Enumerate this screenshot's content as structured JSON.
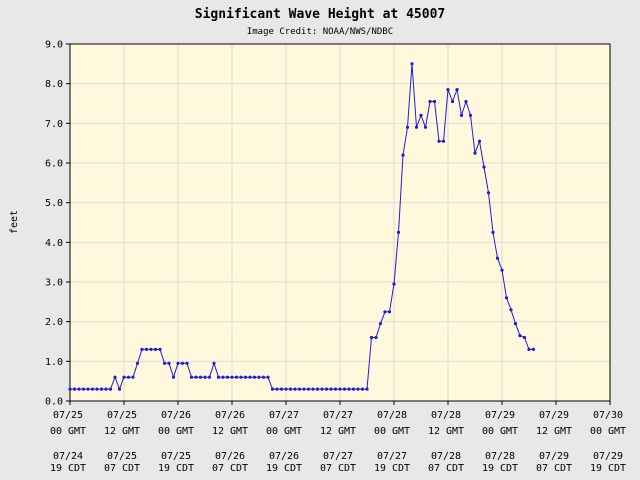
{
  "chart_data": {
    "type": "line",
    "title": "Significant Wave Height at 45007",
    "subtitle": "Image Credit: NOAA/NWS/NDBC",
    "ylabel": "feet",
    "xlabel": "",
    "ylim": [
      0,
      9
    ],
    "y_ticks": [
      "0.0",
      "1.0",
      "2.0",
      "3.0",
      "4.0",
      "5.0",
      "6.0",
      "7.0",
      "8.0",
      "9.0"
    ],
    "x_ticks": [
      {
        "gmt_date": "07/25",
        "gmt_time": "00 GMT",
        "local_date": "07/24",
        "local_time": "19 CDT"
      },
      {
        "gmt_date": "07/25",
        "gmt_time": "12 GMT",
        "local_date": "07/25",
        "local_time": "07 CDT"
      },
      {
        "gmt_date": "07/26",
        "gmt_time": "00 GMT",
        "local_date": "07/25",
        "local_time": "19 CDT"
      },
      {
        "gmt_date": "07/26",
        "gmt_time": "12 GMT",
        "local_date": "07/26",
        "local_time": "07 CDT"
      },
      {
        "gmt_date": "07/27",
        "gmt_time": "00 GMT",
        "local_date": "07/26",
        "local_time": "19 CDT"
      },
      {
        "gmt_date": "07/27",
        "gmt_time": "12 GMT",
        "local_date": "07/27",
        "local_time": "07 CDT"
      },
      {
        "gmt_date": "07/28",
        "gmt_time": "00 GMT",
        "local_date": "07/27",
        "local_time": "19 CDT"
      },
      {
        "gmt_date": "07/28",
        "gmt_time": "12 GMT",
        "local_date": "07/28",
        "local_time": "07 CDT"
      },
      {
        "gmt_date": "07/29",
        "gmt_time": "00 GMT",
        "local_date": "07/28",
        "local_time": "19 CDT"
      },
      {
        "gmt_date": "07/29",
        "gmt_time": "12 GMT",
        "local_date": "07/29",
        "local_time": "07 CDT"
      },
      {
        "gmt_date": "07/30",
        "gmt_time": "00 GMT",
        "local_date": "07/29",
        "local_time": "19 CDT"
      }
    ],
    "x_unit": "hours since 07/25 00 GMT",
    "xlim": [
      0,
      120
    ],
    "grid": true,
    "colors": {
      "line": "#1f1fd0",
      "plot_bg": "#fff8dc",
      "grid": "#e6d9d9",
      "page_bg": "#e8e8e8"
    },
    "series": [
      {
        "x": [
          0,
          1,
          2,
          3,
          4,
          5,
          6,
          7,
          8,
          9,
          10,
          11,
          12,
          13,
          14,
          15,
          16,
          17,
          18,
          19,
          20,
          21,
          22,
          23,
          24,
          25,
          26,
          27,
          28,
          29,
          30,
          31,
          32,
          33,
          34,
          35,
          36,
          37,
          38,
          39,
          40,
          41,
          42,
          43,
          44,
          45,
          46,
          47,
          48,
          49,
          50,
          51,
          52,
          53,
          54,
          55,
          56,
          57,
          58,
          59,
          60,
          61,
          62,
          63,
          64,
          65,
          66,
          67,
          68,
          69,
          70,
          71,
          72,
          73,
          74,
          75,
          76,
          77,
          78,
          79,
          80,
          81,
          82,
          83,
          84,
          85,
          86,
          87,
          88,
          89,
          90,
          91,
          92,
          93,
          94,
          95,
          96,
          97,
          98,
          99,
          100,
          101,
          102,
          103
        ],
        "values": [
          0.3,
          0.3,
          0.3,
          0.3,
          0.3,
          0.3,
          0.3,
          0.3,
          0.3,
          0.3,
          0.6,
          0.3,
          0.6,
          0.6,
          0.6,
          0.95,
          1.3,
          1.3,
          1.3,
          1.3,
          1.3,
          0.95,
          0.95,
          0.6,
          0.95,
          0.95,
          0.95,
          0.6,
          0.6,
          0.6,
          0.6,
          0.6,
          0.95,
          0.6,
          0.6,
          0.6,
          0.6,
          0.6,
          0.6,
          0.6,
          0.6,
          0.6,
          0.6,
          0.6,
          0.6,
          0.3,
          0.3,
          0.3,
          0.3,
          0.3,
          0.3,
          0.3,
          0.3,
          0.3,
          0.3,
          0.3,
          0.3,
          0.3,
          0.3,
          0.3,
          0.3,
          0.3,
          0.3,
          0.3,
          0.3,
          0.3,
          0.3,
          1.6,
          1.6,
          1.95,
          2.25,
          2.25,
          2.95,
          4.25,
          6.2,
          6.9,
          8.5,
          6.9,
          7.2,
          6.9,
          7.55,
          7.55,
          6.55,
          6.55,
          7.85,
          7.55,
          7.85,
          7.2,
          7.55,
          7.2,
          6.25,
          6.55,
          5.9,
          5.25,
          4.25,
          3.6,
          3.3,
          2.6,
          2.3,
          1.95,
          1.65,
          1.6,
          1.3,
          1.3
        ]
      }
    ]
  }
}
